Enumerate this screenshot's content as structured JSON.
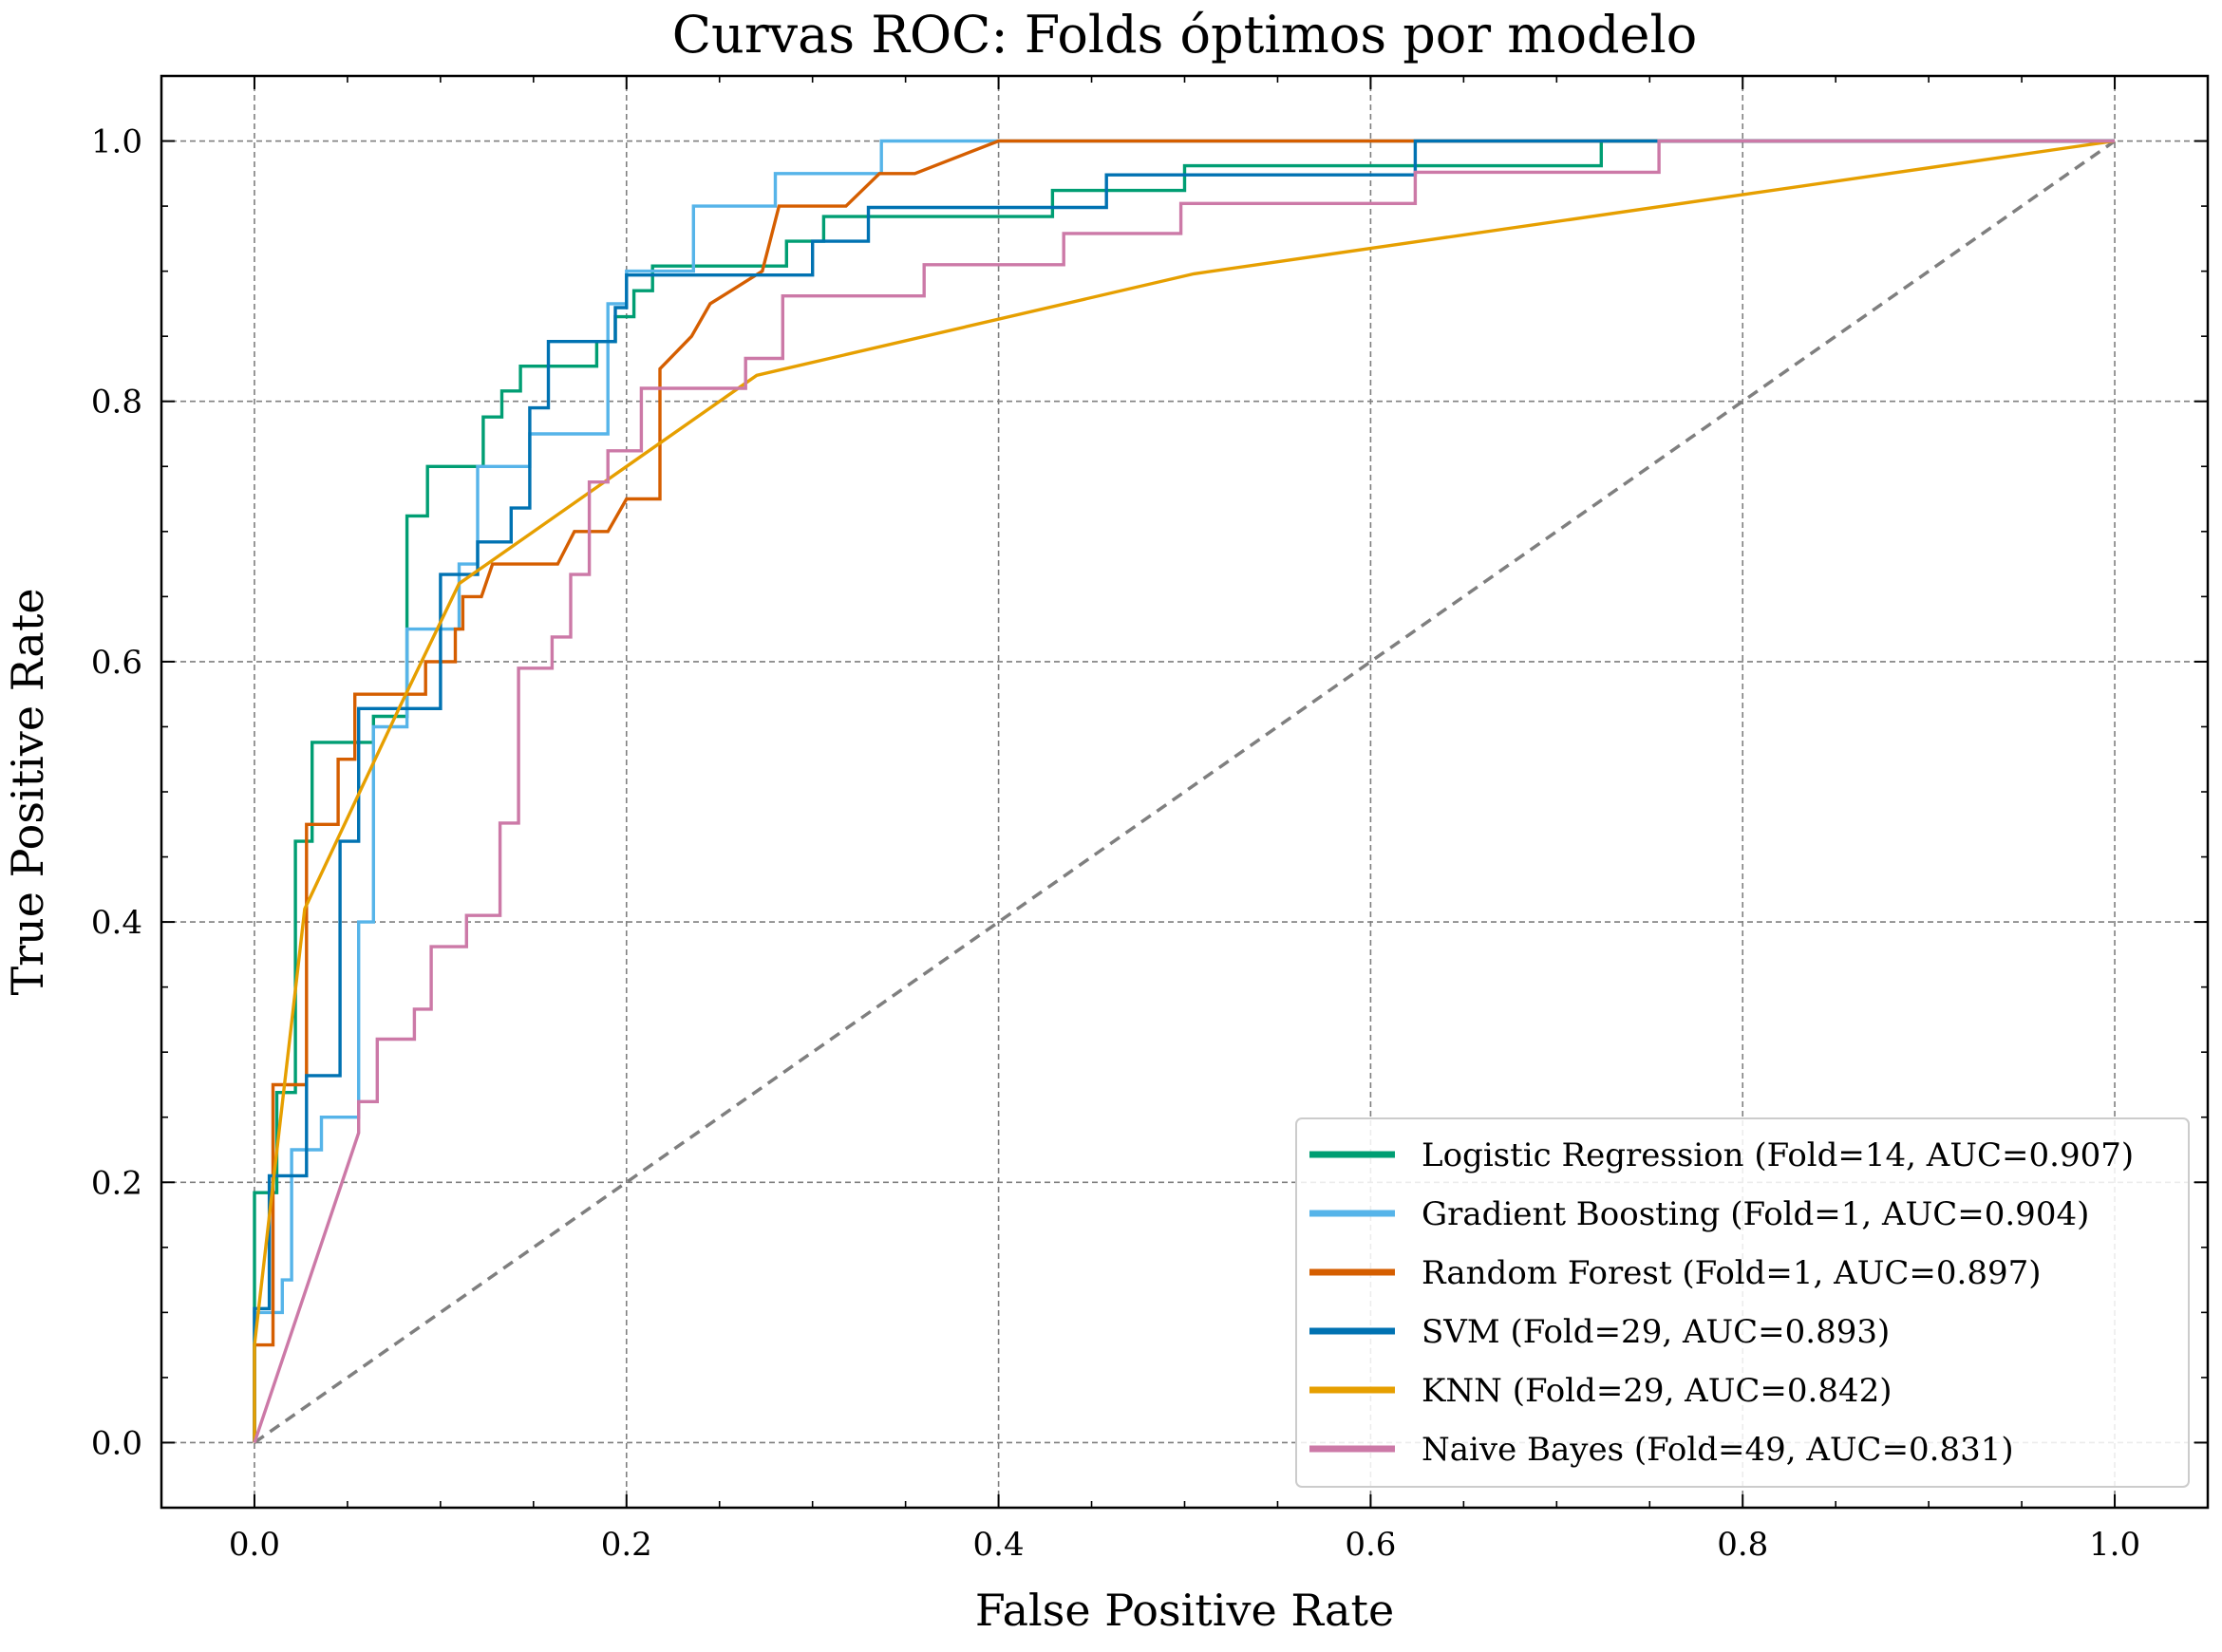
{
  "chart_data": {
    "type": "line",
    "title": "Curvas ROC: Folds óptimos por modelo",
    "xlabel": "False Positive Rate",
    "ylabel": "True Positive Rate",
    "xlim": [
      -0.05,
      1.05
    ],
    "ylim": [
      -0.05,
      1.05
    ],
    "xticks": [
      0.0,
      0.2,
      0.4,
      0.6,
      0.8,
      1.0
    ],
    "yticks": [
      0.0,
      0.2,
      0.4,
      0.6,
      0.8,
      1.0
    ],
    "xtick_labels": [
      "0.0",
      "0.2",
      "0.4",
      "0.6",
      "0.8",
      "1.0"
    ],
    "ytick_labels": [
      "0.0",
      "0.2",
      "0.4",
      "0.6",
      "0.8",
      "1.0"
    ],
    "grid": true,
    "legend_position": "bottom-right",
    "diagonal": {
      "x": [
        0,
        1
      ],
      "y": [
        0,
        1
      ],
      "color": "#7f7f7f",
      "style": "dashed"
    },
    "series": [
      {
        "name": "Logistic Regression (Fold=14, AUC=0.907)",
        "color": "#009e73",
        "points": [
          [
            0,
            0
          ],
          [
            0,
            0.192
          ],
          [
            0.012,
            0.192
          ],
          [
            0.012,
            0.269
          ],
          [
            0.022,
            0.269
          ],
          [
            0.022,
            0.462
          ],
          [
            0.031,
            0.462
          ],
          [
            0.031,
            0.538
          ],
          [
            0.064,
            0.538
          ],
          [
            0.064,
            0.558
          ],
          [
            0.082,
            0.558
          ],
          [
            0.082,
            0.712
          ],
          [
            0.093,
            0.712
          ],
          [
            0.093,
            0.75
          ],
          [
            0.123,
            0.75
          ],
          [
            0.123,
            0.788
          ],
          [
            0.133,
            0.788
          ],
          [
            0.133,
            0.808
          ],
          [
            0.143,
            0.808
          ],
          [
            0.143,
            0.827
          ],
          [
            0.184,
            0.827
          ],
          [
            0.184,
            0.846
          ],
          [
            0.194,
            0.846
          ],
          [
            0.194,
            0.865
          ],
          [
            0.204,
            0.865
          ],
          [
            0.204,
            0.885
          ],
          [
            0.214,
            0.885
          ],
          [
            0.214,
            0.904
          ],
          [
            0.286,
            0.904
          ],
          [
            0.286,
            0.923
          ],
          [
            0.306,
            0.923
          ],
          [
            0.306,
            0.942
          ],
          [
            0.429,
            0.942
          ],
          [
            0.429,
            0.962
          ],
          [
            0.5,
            0.962
          ],
          [
            0.5,
            0.981
          ],
          [
            0.724,
            0.981
          ],
          [
            0.724,
            1.0
          ],
          [
            1.0,
            1.0
          ]
        ]
      },
      {
        "name": "Gradient Boosting (Fold=1, AUC=0.904)",
        "color": "#56b4e9",
        "points": [
          [
            0,
            0
          ],
          [
            0,
            0.1
          ],
          [
            0.015,
            0.1
          ],
          [
            0.015,
            0.125
          ],
          [
            0.02,
            0.125
          ],
          [
            0.02,
            0.225
          ],
          [
            0.036,
            0.225
          ],
          [
            0.036,
            0.25
          ],
          [
            0.056,
            0.25
          ],
          [
            0.056,
            0.4
          ],
          [
            0.064,
            0.4
          ],
          [
            0.064,
            0.55
          ],
          [
            0.082,
            0.55
          ],
          [
            0.082,
            0.625
          ],
          [
            0.11,
            0.625
          ],
          [
            0.11,
            0.675
          ],
          [
            0.12,
            0.675
          ],
          [
            0.12,
            0.75
          ],
          [
            0.148,
            0.75
          ],
          [
            0.148,
            0.775
          ],
          [
            0.19,
            0.775
          ],
          [
            0.19,
            0.875
          ],
          [
            0.2,
            0.875
          ],
          [
            0.2,
            0.9
          ],
          [
            0.236,
            0.9
          ],
          [
            0.236,
            0.95
          ],
          [
            0.28,
            0.95
          ],
          [
            0.28,
            0.975
          ],
          [
            0.337,
            0.975
          ],
          [
            0.337,
            1.0
          ],
          [
            1.0,
            1.0
          ]
        ]
      },
      {
        "name": "Random Forest (Fold=1, AUC=0.897)",
        "color": "#d55e00",
        "points": [
          [
            0,
            0
          ],
          [
            0,
            0.075
          ],
          [
            0.01,
            0.075
          ],
          [
            0.01,
            0.275
          ],
          [
            0.028,
            0.275
          ],
          [
            0.028,
            0.475
          ],
          [
            0.045,
            0.475
          ],
          [
            0.045,
            0.525
          ],
          [
            0.054,
            0.525
          ],
          [
            0.054,
            0.575
          ],
          [
            0.092,
            0.575
          ],
          [
            0.092,
            0.6
          ],
          [
            0.108,
            0.6
          ],
          [
            0.108,
            0.625
          ],
          [
            0.112,
            0.625
          ],
          [
            0.112,
            0.65
          ],
          [
            0.122,
            0.65
          ],
          [
            0.128,
            0.675
          ],
          [
            0.163,
            0.675
          ],
          [
            0.172,
            0.7
          ],
          [
            0.19,
            0.7
          ],
          [
            0.2,
            0.725
          ],
          [
            0.218,
            0.725
          ],
          [
            0.218,
            0.825
          ],
          [
            0.235,
            0.85
          ],
          [
            0.245,
            0.875
          ],
          [
            0.273,
            0.9
          ],
          [
            0.282,
            0.95
          ],
          [
            0.318,
            0.95
          ],
          [
            0.336,
            0.975
          ],
          [
            0.355,
            0.975
          ],
          [
            0.4,
            1.0
          ],
          [
            1.0,
            1.0
          ]
        ]
      },
      {
        "name": "SVM (Fold=29, AUC=0.893)",
        "color": "#0072b2",
        "points": [
          [
            0,
            0
          ],
          [
            0,
            0.103
          ],
          [
            0.008,
            0.103
          ],
          [
            0.008,
            0.205
          ],
          [
            0.028,
            0.205
          ],
          [
            0.028,
            0.282
          ],
          [
            0.046,
            0.282
          ],
          [
            0.046,
            0.462
          ],
          [
            0.056,
            0.462
          ],
          [
            0.056,
            0.564
          ],
          [
            0.1,
            0.564
          ],
          [
            0.1,
            0.667
          ],
          [
            0.12,
            0.667
          ],
          [
            0.12,
            0.692
          ],
          [
            0.138,
            0.692
          ],
          [
            0.138,
            0.718
          ],
          [
            0.148,
            0.718
          ],
          [
            0.148,
            0.795
          ],
          [
            0.158,
            0.795
          ],
          [
            0.158,
            0.846
          ],
          [
            0.194,
            0.846
          ],
          [
            0.194,
            0.872
          ],
          [
            0.2,
            0.872
          ],
          [
            0.2,
            0.897
          ],
          [
            0.3,
            0.897
          ],
          [
            0.3,
            0.923
          ],
          [
            0.33,
            0.923
          ],
          [
            0.33,
            0.949
          ],
          [
            0.458,
            0.949
          ],
          [
            0.458,
            0.974
          ],
          [
            0.624,
            0.974
          ],
          [
            0.624,
            1.0
          ],
          [
            1.0,
            1.0
          ]
        ]
      },
      {
        "name": "KNN (Fold=29, AUC=0.842)",
        "color": "#e69f00",
        "points": [
          [
            0,
            0
          ],
          [
            0,
            0.075
          ],
          [
            0.027,
            0.41
          ],
          [
            0.078,
            0.565
          ],
          [
            0.11,
            0.66
          ],
          [
            0.2,
            0.75
          ],
          [
            0.27,
            0.82
          ],
          [
            0.505,
            0.898
          ],
          [
            1.0,
            1.0
          ]
        ]
      },
      {
        "name": "Naive Bayes (Fold=49, AUC=0.831)",
        "color": "#cc79a7",
        "points": [
          [
            0,
            0
          ],
          [
            0.056,
            0.238
          ],
          [
            0.056,
            0.262
          ],
          [
            0.066,
            0.262
          ],
          [
            0.066,
            0.31
          ],
          [
            0.086,
            0.31
          ],
          [
            0.086,
            0.333
          ],
          [
            0.095,
            0.333
          ],
          [
            0.095,
            0.381
          ],
          [
            0.114,
            0.381
          ],
          [
            0.114,
            0.405
          ],
          [
            0.132,
            0.405
          ],
          [
            0.132,
            0.476
          ],
          [
            0.142,
            0.476
          ],
          [
            0.142,
            0.595
          ],
          [
            0.16,
            0.595
          ],
          [
            0.16,
            0.619
          ],
          [
            0.17,
            0.619
          ],
          [
            0.17,
            0.667
          ],
          [
            0.18,
            0.667
          ],
          [
            0.18,
            0.738
          ],
          [
            0.19,
            0.738
          ],
          [
            0.19,
            0.762
          ],
          [
            0.208,
            0.762
          ],
          [
            0.208,
            0.81
          ],
          [
            0.264,
            0.81
          ],
          [
            0.264,
            0.833
          ],
          [
            0.284,
            0.833
          ],
          [
            0.284,
            0.881
          ],
          [
            0.36,
            0.881
          ],
          [
            0.36,
            0.905
          ],
          [
            0.435,
            0.905
          ],
          [
            0.435,
            0.929
          ],
          [
            0.498,
            0.929
          ],
          [
            0.498,
            0.952
          ],
          [
            0.624,
            0.952
          ],
          [
            0.624,
            0.976
          ],
          [
            0.755,
            0.976
          ],
          [
            0.755,
            1.0
          ],
          [
            1.0,
            1.0
          ]
        ]
      }
    ]
  }
}
